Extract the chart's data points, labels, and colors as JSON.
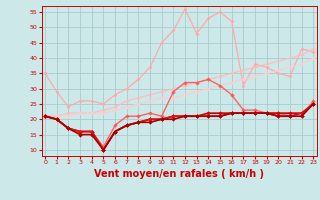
{
  "background_color": "#cce8e8",
  "grid_color": "#aacccc",
  "xlabel": "Vent moyen/en rafales ( km/h )",
  "xlabel_color": "#cc0000",
  "xlabel_fontsize": 7,
  "ytick_labels": [
    "10",
    "15",
    "20",
    "25",
    "30",
    "35",
    "40",
    "45",
    "50",
    "55"
  ],
  "yticks": [
    10,
    15,
    20,
    25,
    30,
    35,
    40,
    45,
    50,
    55
  ],
  "xticks": [
    0,
    1,
    2,
    3,
    4,
    5,
    6,
    7,
    8,
    9,
    10,
    11,
    12,
    13,
    14,
    15,
    16,
    17,
    18,
    19,
    20,
    21,
    22,
    23
  ],
  "xlim": [
    -0.3,
    23.3
  ],
  "ylim": [
    8,
    57
  ],
  "series": [
    {
      "color": "#ffaaaa",
      "alpha": 1.0,
      "linewidth": 0.9,
      "marker": "D",
      "markersize": 2.0,
      "data": [
        35,
        29,
        24,
        26,
        26,
        25,
        28,
        30,
        33,
        37,
        45,
        49,
        56,
        48,
        53,
        55,
        52,
        31,
        38,
        37,
        35,
        34,
        43,
        42
      ]
    },
    {
      "color": "#ffbbbb",
      "alpha": 0.9,
      "linewidth": 0.9,
      "marker": "D",
      "markersize": 2.0,
      "data": [
        21,
        21,
        22,
        22,
        22,
        23,
        24,
        26,
        27,
        28,
        29,
        30,
        31,
        32,
        33,
        34,
        35,
        36,
        37,
        38,
        39,
        40,
        41,
        43
      ]
    },
    {
      "color": "#ffcccc",
      "alpha": 0.9,
      "linewidth": 0.9,
      "marker": "D",
      "markersize": 2.0,
      "data": [
        21,
        21,
        21,
        22,
        22,
        22,
        23,
        24,
        25,
        26,
        27,
        27,
        28,
        29,
        30,
        31,
        32,
        33,
        34,
        35,
        36,
        37,
        38,
        40
      ]
    },
    {
      "color": "#ff5555",
      "alpha": 0.9,
      "linewidth": 1.0,
      "marker": "D",
      "markersize": 2.2,
      "data": [
        21,
        20,
        17,
        16,
        16,
        11,
        18,
        21,
        21,
        22,
        21,
        29,
        32,
        32,
        33,
        31,
        28,
        23,
        23,
        22,
        22,
        21,
        21,
        26
      ]
    },
    {
      "color": "#cc0000",
      "alpha": 1.0,
      "linewidth": 1.2,
      "marker": "D",
      "markersize": 2.2,
      "data": [
        21,
        20,
        17,
        16,
        16,
        10,
        16,
        18,
        19,
        20,
        20,
        21,
        21,
        21,
        22,
        22,
        22,
        22,
        22,
        22,
        22,
        22,
        22,
        25
      ]
    },
    {
      "color": "#dd1111",
      "alpha": 1.0,
      "linewidth": 1.2,
      "marker": "D",
      "markersize": 2.2,
      "data": [
        21,
        20,
        17,
        16,
        16,
        10,
        16,
        18,
        19,
        20,
        20,
        21,
        21,
        21,
        21,
        21,
        22,
        22,
        22,
        22,
        21,
        21,
        22,
        25
      ]
    },
    {
      "color": "#aa0000",
      "alpha": 1.0,
      "linewidth": 1.2,
      "marker": "D",
      "markersize": 2.2,
      "data": [
        21,
        20,
        17,
        15,
        15,
        10,
        16,
        18,
        19,
        19,
        20,
        20,
        21,
        21,
        21,
        21,
        22,
        22,
        22,
        22,
        21,
        21,
        21,
        25
      ]
    }
  ]
}
